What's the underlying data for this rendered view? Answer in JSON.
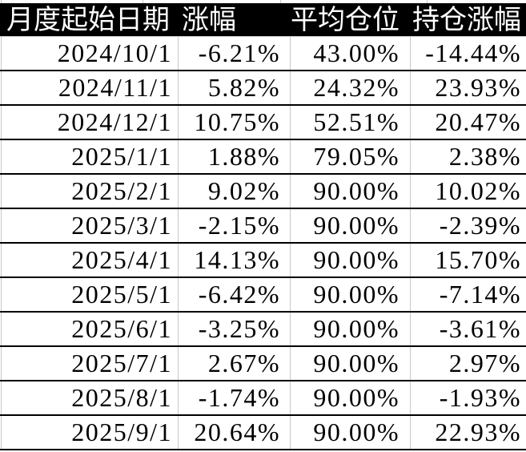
{
  "chart_data": {
    "type": "table",
    "columns": [
      "月度起始日期",
      "涨幅",
      "平均仓位",
      "持仓涨幅"
    ],
    "rows": [
      [
        "2024/10/1",
        "-6.21%",
        "43.00%",
        "-14.44%"
      ],
      [
        "2024/11/1",
        "5.82%",
        "24.32%",
        "23.93%"
      ],
      [
        "2024/12/1",
        "10.75%",
        "52.51%",
        "20.47%"
      ],
      [
        "2025/1/1",
        "1.88%",
        "79.05%",
        "2.38%"
      ],
      [
        "2025/2/1",
        "9.02%",
        "90.00%",
        "10.02%"
      ],
      [
        "2025/3/1",
        "-2.15%",
        "90.00%",
        "-2.39%"
      ],
      [
        "2025/4/1",
        "14.13%",
        "90.00%",
        "15.70%"
      ],
      [
        "2025/5/1",
        "-6.42%",
        "90.00%",
        "-7.14%"
      ],
      [
        "2025/6/1",
        "-3.25%",
        "90.00%",
        "-3.61%"
      ],
      [
        "2025/7/1",
        "2.67%",
        "90.00%",
        "2.97%"
      ],
      [
        "2025/8/1",
        "-1.74%",
        "90.00%",
        "-1.93%"
      ],
      [
        "2025/9/1",
        "20.64%",
        "90.00%",
        "22.93%"
      ]
    ]
  },
  "colors": {
    "header_bg": "#000000",
    "header_text": "#ffffff",
    "grid_line": "#c8c8c8",
    "row_divider": "#000000",
    "cell_bg": "#ffffff",
    "cell_text": "#000000"
  }
}
